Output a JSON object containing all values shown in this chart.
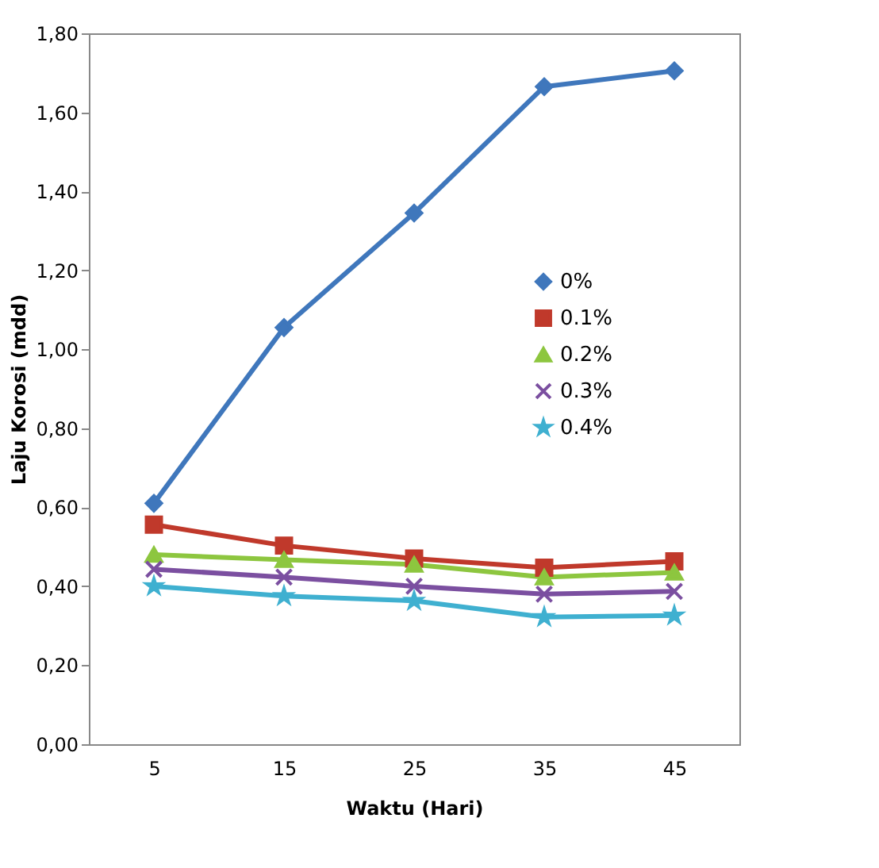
{
  "chart_data": {
    "type": "line",
    "xlabel": "Waktu  (Hari)",
    "ylabel": "Laju Korosi (mdd)",
    "categories": [
      "5",
      "15",
      "25",
      "35",
      "45"
    ],
    "series": [
      {
        "name": "0%",
        "color": "#3f77bc",
        "marker": "diamond",
        "values": [
          0.61,
          1.055,
          1.345,
          1.665,
          1.705
        ]
      },
      {
        "name": "0.1%",
        "color": "#c0392b",
        "marker": "square",
        "values": [
          0.556,
          0.503,
          0.47,
          0.447,
          0.463
        ]
      },
      {
        "name": "0.2%",
        "color": "#8dc63f",
        "marker": "triangle",
        "values": [
          0.48,
          0.467,
          0.455,
          0.423,
          0.435
        ]
      },
      {
        "name": "0.3%",
        "color": "#7b4fa0",
        "marker": "cross",
        "values": [
          0.443,
          0.423,
          0.4,
          0.38,
          0.387
        ]
      },
      {
        "name": "0.4%",
        "color": "#3fb0d0",
        "marker": "star",
        "values": [
          0.4,
          0.375,
          0.363,
          0.322,
          0.326
        ]
      }
    ],
    "ylim": [
      0,
      1.8
    ],
    "yticks": [
      {
        "value": 0,
        "label": "0,00"
      },
      {
        "value": 0.2,
        "label": "0,20"
      },
      {
        "value": 0.4,
        "label": "0,40"
      },
      {
        "value": 0.6,
        "label": "0,60"
      },
      {
        "value": 0.8,
        "label": "0,80"
      },
      {
        "value": 1.0,
        "label": "1,00"
      },
      {
        "value": 1.2,
        "label": "1,20"
      },
      {
        "value": 1.4,
        "label": "1,40"
      },
      {
        "value": 1.6,
        "label": "1,60"
      },
      {
        "value": 1.8,
        "label": "1,80"
      }
    ],
    "grid": false,
    "legend": "right",
    "line_style": "solid"
  }
}
